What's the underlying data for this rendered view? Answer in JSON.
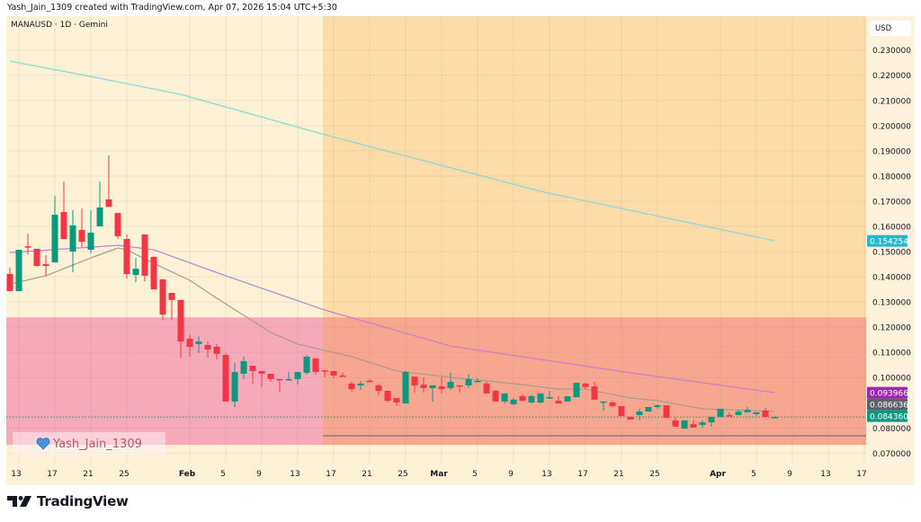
{
  "header": {
    "attribution": "Yash_Jain_1309 created with TradingView.com, Apr 07, 2026 15:04 UTC+5:30"
  },
  "legend": {
    "symbol_line": "MANAUSD · 1D · Gemini"
  },
  "price_axis": {
    "currency": "USD"
  },
  "watermark": {
    "text": "Yash_Jain_1309",
    "icon": "blue-heart-icon"
  },
  "footer": {
    "logo_text": "TradingView"
  },
  "colors": {
    "up": "#089981",
    "down": "#f23645",
    "background": "#fdf1d6",
    "resistance_zone": "#fddcaa",
    "support_zone": "#f6a9b9",
    "overlap_zone": "#f7a790",
    "ema_long": "#86d8dc",
    "ema_mid": "#c77fd3",
    "ema_short": "#a99b8e",
    "last_price": "#089981"
  },
  "chart_data": {
    "type": "candlestick",
    "symbol": "MANAUSD",
    "interval": "1D",
    "exchange": "Gemini",
    "year": 2026,
    "ylim": [
      0.065,
      0.24
    ],
    "yticks": [
      "0.230000",
      "0.220000",
      "0.210000",
      "0.200000",
      "0.190000",
      "0.180000",
      "0.170000",
      "0.160000",
      "0.150000",
      "0.140000",
      "0.130000",
      "0.120000",
      "0.110000",
      "0.100000",
      "0.080000",
      "0.070000"
    ],
    "xticks": [
      {
        "label": "13",
        "date": "Jan 13"
      },
      {
        "label": "17",
        "date": "Jan 17"
      },
      {
        "label": "21",
        "date": "Jan 21"
      },
      {
        "label": "25",
        "date": "Jan 25"
      },
      {
        "label": "Feb",
        "date": "Feb 1"
      },
      {
        "label": "5",
        "date": "Feb 5"
      },
      {
        "label": "9",
        "date": "Feb 9"
      },
      {
        "label": "13",
        "date": "Feb 13"
      },
      {
        "label": "17",
        "date": "Feb 17"
      },
      {
        "label": "21",
        "date": "Feb 21"
      },
      {
        "label": "25",
        "date": "Feb 25"
      },
      {
        "label": "Mar",
        "date": "Mar 1"
      },
      {
        "label": "5",
        "date": "Mar 5"
      },
      {
        "label": "9",
        "date": "Mar 9"
      },
      {
        "label": "13",
        "date": "Mar 13"
      },
      {
        "label": "17",
        "date": "Mar 17"
      },
      {
        "label": "21",
        "date": "Mar 21"
      },
      {
        "label": "25",
        "date": "Mar 25"
      },
      {
        "label": "Apr",
        "date": "Apr 1"
      },
      {
        "label": "5",
        "date": "Apr 5"
      },
      {
        "label": "9",
        "date": "Apr 9"
      },
      {
        "label": "13",
        "date": "Apr 13"
      },
      {
        "label": "17",
        "date": "Apr 17"
      }
    ],
    "candles_columns": [
      "date",
      "open",
      "high",
      "low",
      "close"
    ],
    "candles": [
      [
        "Jan 12",
        0.1411,
        0.1436,
        0.1343,
        0.1343
      ],
      [
        "Jan 13",
        0.1343,
        0.1507,
        0.1343,
        0.1507
      ],
      [
        "Jan 14",
        0.1521,
        0.1571,
        0.1489,
        0.1518
      ],
      [
        "Jan 15",
        0.1511,
        0.1511,
        0.1439,
        0.1443
      ],
      [
        "Jan 16",
        0.145,
        0.1486,
        0.1404,
        0.1443
      ],
      [
        "Jan 17",
        0.1457,
        0.1721,
        0.1457,
        0.1646
      ],
      [
        "Jan 18",
        0.1657,
        0.1778,
        0.155,
        0.155
      ],
      [
        "Jan 19",
        0.15,
        0.1664,
        0.1418,
        0.1604
      ],
      [
        "Jan 20",
        0.1586,
        0.1671,
        0.1518,
        0.1539
      ],
      [
        "Jan 21",
        0.1507,
        0.1664,
        0.1493,
        0.1575
      ],
      [
        "Jan 22",
        0.16,
        0.1778,
        0.16,
        0.1675
      ],
      [
        "Jan 23",
        0.1707,
        0.1882,
        0.1678,
        0.1678
      ],
      [
        "Jan 24",
        0.1653,
        0.1653,
        0.155,
        0.1561
      ],
      [
        "Jan 25",
        0.155,
        0.1568,
        0.1393,
        0.1411
      ],
      [
        "Jan 26",
        0.1407,
        0.1475,
        0.1379,
        0.1432
      ],
      [
        "Jan 27",
        0.1568,
        0.1568,
        0.1382,
        0.1404
      ],
      [
        "Jan 28",
        0.1479,
        0.1479,
        0.135,
        0.135
      ],
      [
        "Jan 29",
        0.139,
        0.139,
        0.1229,
        0.125
      ],
      [
        "Jan 30",
        0.1336,
        0.1336,
        0.1229,
        0.1308
      ],
      [
        "Jan 31",
        0.1308,
        0.1308,
        0.1076,
        0.1143
      ],
      [
        "Feb 1",
        0.1154,
        0.1168,
        0.1083,
        0.1122
      ],
      [
        "Feb 2",
        0.1133,
        0.1165,
        0.1097,
        0.1143
      ],
      [
        "Feb 3",
        0.1129,
        0.1143,
        0.1079,
        0.1111
      ],
      [
        "Feb 4",
        0.1122,
        0.1133,
        0.1072,
        0.1094
      ],
      [
        "Feb 5",
        0.109,
        0.1097,
        0.0905,
        0.0905
      ],
      [
        "Feb 6",
        0.0905,
        0.1058,
        0.0883,
        0.1022
      ],
      [
        "Feb 7",
        0.1015,
        0.1083,
        0.0994,
        0.1065
      ],
      [
        "Feb 8",
        0.1047,
        0.1047,
        0.0976,
        0.1026
      ],
      [
        "Feb 9",
        0.1026,
        0.1026,
        0.0962,
        0.1015
      ],
      [
        "Feb 10",
        0.1015,
        0.1015,
        0.0983,
        0.0994
      ],
      [
        "Feb 11",
        0.0994,
        0.0994,
        0.0944,
        0.099
      ],
      [
        "Feb 12",
        0.099,
        0.1022,
        0.0987,
        0.0994
      ],
      [
        "Feb 13",
        0.0994,
        0.1022,
        0.0972,
        0.1022
      ],
      [
        "Feb 14",
        0.1019,
        0.109,
        0.1012,
        0.1083
      ],
      [
        "Feb 15",
        0.1076,
        0.1076,
        0.1012,
        0.1022
      ],
      [
        "Feb 16",
        0.1029,
        0.1029,
        0.1001,
        0.1026
      ],
      [
        "Feb 17",
        0.1026,
        0.1026,
        0.0997,
        0.1008
      ],
      [
        "Feb 18",
        0.1008,
        0.1019,
        0.1004,
        0.1004
      ],
      [
        "Feb 19",
        0.0976,
        0.0983,
        0.0944,
        0.0954
      ],
      [
        "Feb 20",
        0.0969,
        0.0987,
        0.0951,
        0.0976
      ],
      [
        "Feb 21",
        0.0987,
        0.0994,
        0.0983,
        0.0983
      ],
      [
        "Feb 22",
        0.0969,
        0.0976,
        0.093,
        0.0947
      ],
      [
        "Feb 23",
        0.0947,
        0.0947,
        0.0901,
        0.0908
      ],
      [
        "Feb 24",
        0.0919,
        0.0919,
        0.0887,
        0.0901
      ],
      [
        "Feb 25",
        0.0897,
        0.1026,
        0.0897,
        0.1022
      ],
      [
        "Feb 26",
        0.1004,
        0.1004,
        0.094,
        0.0969
      ],
      [
        "Feb 27",
        0.0972,
        0.1001,
        0.094,
        0.0958
      ],
      [
        "Feb 28",
        0.0958,
        0.0969,
        0.0905,
        0.0969
      ],
      [
        "Mar 1",
        0.0965,
        0.1001,
        0.0937,
        0.0954
      ],
      [
        "Mar 2",
        0.0958,
        0.1019,
        0.0951,
        0.0983
      ],
      [
        "Mar 3",
        0.0969,
        0.0969,
        0.094,
        0.0965
      ],
      [
        "Mar 4",
        0.0969,
        0.1012,
        0.0958,
        0.0994
      ],
      [
        "Mar 5",
        0.0983,
        0.0997,
        0.0983,
        0.0987
      ],
      [
        "Mar 6",
        0.0976,
        0.0983,
        0.0937,
        0.0937
      ],
      [
        "Mar 7",
        0.0947,
        0.0951,
        0.0905,
        0.0905
      ],
      [
        "Mar 8",
        0.0905,
        0.0937,
        0.0897,
        0.0937
      ],
      [
        "Mar 9",
        0.0894,
        0.0919,
        0.089,
        0.0912
      ],
      [
        "Mar 10",
        0.0926,
        0.0933,
        0.0905,
        0.0908
      ],
      [
        "Mar 11",
        0.0901,
        0.0933,
        0.0897,
        0.0926
      ],
      [
        "Mar 12",
        0.0901,
        0.0937,
        0.0897,
        0.0937
      ],
      [
        "Mar 13",
        0.0919,
        0.0947,
        0.0919,
        0.0922
      ],
      [
        "Mar 14",
        0.0908,
        0.0926,
        0.0897,
        0.0897
      ],
      [
        "Mar 15",
        0.0905,
        0.0926,
        0.0905,
        0.0926
      ],
      [
        "Mar 16",
        0.0922,
        0.0979,
        0.0922,
        0.0979
      ],
      [
        "Mar 17",
        0.0976,
        0.0979,
        0.0954,
        0.0962
      ],
      [
        "Mar 18",
        0.0965,
        0.0983,
        0.0912,
        0.0912
      ],
      [
        "Mar 19",
        0.0901,
        0.0905,
        0.0869,
        0.0905
      ],
      [
        "Mar 20",
        0.0901,
        0.0908,
        0.0883,
        0.0887
      ],
      [
        "Mar 21",
        0.0887,
        0.0887,
        0.0847,
        0.0847
      ],
      [
        "Mar 22",
        0.0844,
        0.0847,
        0.0833,
        0.0833
      ],
      [
        "Mar 23",
        0.0851,
        0.0876,
        0.083,
        0.0865
      ],
      [
        "Mar 24",
        0.0865,
        0.0883,
        0.0865,
        0.0883
      ],
      [
        "Mar 25",
        0.0883,
        0.0894,
        0.0876,
        0.089
      ],
      [
        "Mar 26",
        0.089,
        0.089,
        0.084,
        0.084
      ],
      [
        "Mar 27",
        0.083,
        0.084,
        0.0805,
        0.0805
      ],
      [
        "Mar 28",
        0.0797,
        0.083,
        0.0797,
        0.083
      ],
      [
        "Mar 29",
        0.0815,
        0.083,
        0.0801,
        0.0801
      ],
      [
        "Mar 30",
        0.0812,
        0.083,
        0.0801,
        0.0822
      ],
      [
        "Mar 31",
        0.0822,
        0.0844,
        0.0805,
        0.0844
      ],
      [
        "Apr 1",
        0.0844,
        0.0876,
        0.0844,
        0.0876
      ],
      [
        "Apr 2",
        0.0851,
        0.0862,
        0.0847,
        0.0847
      ],
      [
        "Apr 3",
        0.0851,
        0.0872,
        0.0851,
        0.0865
      ],
      [
        "Apr 4",
        0.0862,
        0.0883,
        0.0862,
        0.0872
      ],
      [
        "Apr 5",
        0.0855,
        0.0862,
        0.0847,
        0.0862
      ],
      [
        "Apr 6",
        0.0869,
        0.088,
        0.0844,
        0.0844
      ],
      [
        "Apr 7",
        0.0843,
        0.0845,
        0.0842,
        0.08436
      ]
    ],
    "moving_averages": [
      {
        "color_key": "ema_long",
        "last_value": "0.154254",
        "label_color": "#22b8d0",
        "points": [
          [
            "Jan 12",
            0.2256
          ],
          [
            "Jan 21",
            0.2195
          ],
          [
            "Jan 31",
            0.2124
          ],
          [
            "Feb 16",
            0.1964
          ],
          [
            "Mar 12",
            0.1739
          ],
          [
            "Apr 7",
            0.1543
          ]
        ]
      },
      {
        "color_key": "ema_mid",
        "last_value": "0.093966",
        "label_color": "#9c27b0",
        "points": [
          [
            "Jan 12",
            0.1496
          ],
          [
            "Jan 24",
            0.1525
          ],
          [
            "Jan 28",
            0.1507
          ],
          [
            "Feb 5",
            0.1404
          ],
          [
            "Feb 16",
            0.1268
          ],
          [
            "Mar 2",
            0.1125
          ],
          [
            "Mar 12",
            0.1072
          ],
          [
            "Mar 22",
            0.1019
          ],
          [
            "Apr 7",
            0.094
          ]
        ]
      },
      {
        "color_key": "ema_short",
        "last_value": "0.086636",
        "label_color": "#5d606b",
        "points": [
          [
            "Jan 12",
            0.1371
          ],
          [
            "Jan 16",
            0.1404
          ],
          [
            "Jan 21",
            0.1475
          ],
          [
            "Jan 24",
            0.1514
          ],
          [
            "Jan 25",
            0.1507
          ],
          [
            "Jan 28",
            0.1453
          ],
          [
            "Feb 1",
            0.1386
          ],
          [
            "Feb 4",
            0.1315
          ],
          [
            "Feb 10",
            0.1179
          ],
          [
            "Feb 13",
            0.1133
          ],
          [
            "Feb 19",
            0.1083
          ],
          [
            "Feb 24",
            0.1026
          ],
          [
            "Mar 2",
            0.1001
          ],
          [
            "Mar 10",
            0.0972
          ],
          [
            "Mar 14",
            0.0954
          ],
          [
            "Mar 17",
            0.0954
          ],
          [
            "Mar 22",
            0.0919
          ],
          [
            "Mar 25",
            0.0908
          ],
          [
            "Mar 30",
            0.0876
          ],
          [
            "Apr 7",
            0.0866
          ]
        ]
      }
    ],
    "last_price": "0.084360",
    "zones": [
      {
        "kind": "support_zone",
        "from": "Jan 12",
        "to": "Apr 17",
        "top": 0.1239,
        "bottom": 0.0733
      },
      {
        "kind": "resistance_zone",
        "from": "Feb 15",
        "to": "Apr 17",
        "top": 0.2434,
        "bottom": 0.1239
      }
    ],
    "horizontal_line": {
      "from": "Feb 15",
      "to": "Apr 17",
      "price": 0.0769
    }
  }
}
